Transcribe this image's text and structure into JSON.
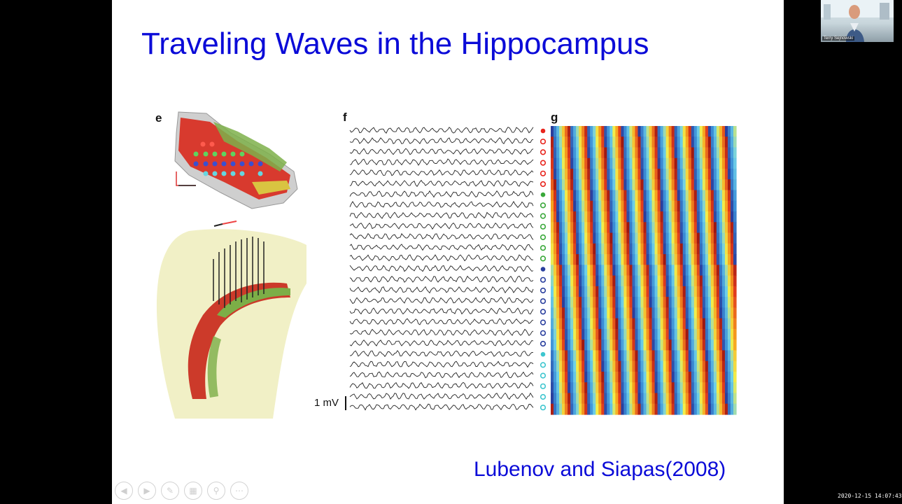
{
  "slide": {
    "title": "Traveling Waves in the Hippocampus",
    "citation": "Lubenov and Siapas(2008)",
    "panels": {
      "e": "e",
      "f": "f",
      "g": "g"
    },
    "scale_label": "1 mV",
    "colors": {
      "title": "#0b0bd8",
      "red": "#e8241c",
      "green": "#3aa83a",
      "blue": "#2a3f9e",
      "cyan": "#3ec6cf"
    }
  },
  "toolbar": {
    "icons": [
      "back-icon",
      "forward-icon",
      "pen-icon",
      "slides-grid-icon",
      "zoom-icon",
      "more-icon"
    ]
  },
  "video": {
    "participant_name": "Terry Sejnowski"
  },
  "recording": {
    "timestamp": "2020-12-15 14:07:43"
  }
}
